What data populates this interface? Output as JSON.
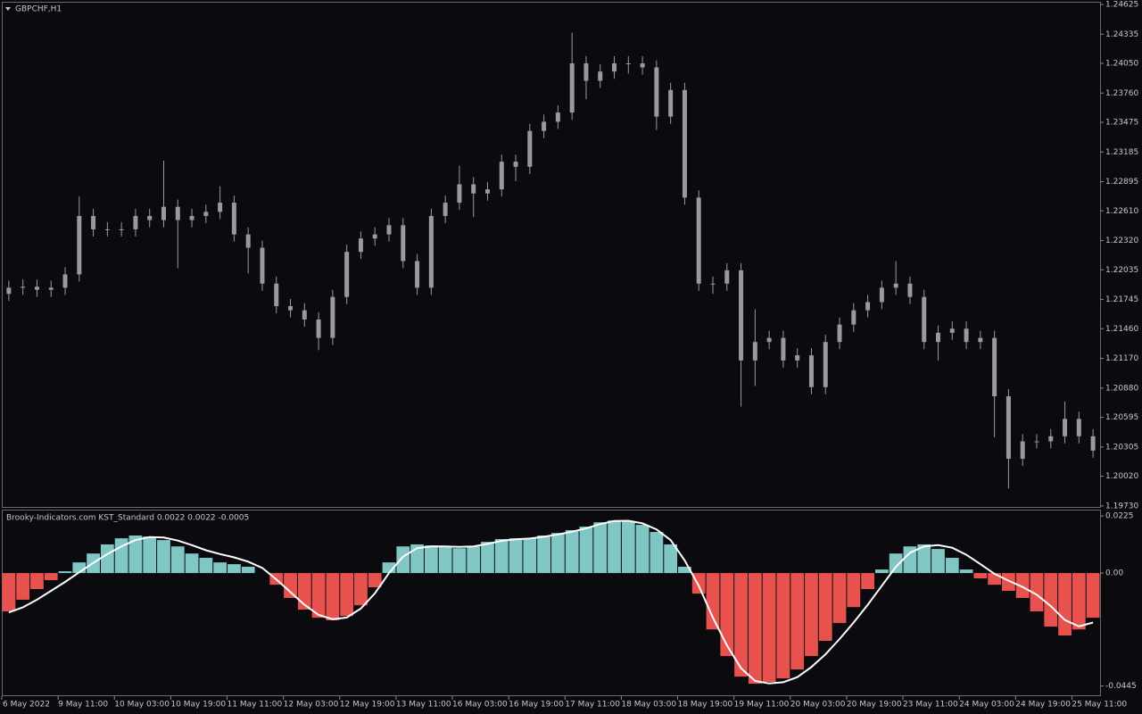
{
  "chart_data": [
    {
      "type": "candlestick",
      "title": "GBPCHF,H1",
      "categories": [
        "6 May 2022",
        null,
        null,
        null,
        "9 May 11:00",
        null,
        null,
        null,
        "10 May 03:00",
        null,
        null,
        null,
        "10 May 19:00",
        null,
        null,
        null,
        "11 May 11:00",
        null,
        null,
        null,
        "12 May 03:00",
        null,
        null,
        null,
        "12 May 19:00",
        null,
        null,
        null,
        "13 May 11:00",
        null,
        null,
        null,
        "16 May 03:00",
        null,
        null,
        null,
        "16 May 19:00",
        null,
        null,
        null,
        "17 May 11:00",
        null,
        null,
        null,
        "18 May 03:00",
        null,
        null,
        null,
        "18 May 19:00",
        null,
        null,
        null,
        "19 May 11:00",
        null,
        null,
        null,
        "20 May 03:00",
        null,
        null,
        null,
        "20 May 19:00",
        null,
        null,
        null,
        "23 May 11:00",
        null,
        null,
        null,
        "24 May 03:00",
        null,
        null,
        null,
        "24 May 19:00",
        null,
        null,
        null,
        "25 May 11:00",
        null
      ],
      "open": [
        1.218,
        1.2186,
        1.2187,
        1.2184,
        1.2186,
        1.2199,
        1.2256,
        1.2243,
        1.2243,
        1.2243,
        1.2256,
        1.2252,
        1.2265,
        1.2252,
        1.2256,
        1.226,
        1.2269,
        1.2238,
        1.2225,
        1.219,
        1.2168,
        1.2164,
        1.2155,
        1.2137,
        1.2177,
        1.2221,
        1.2234,
        1.2238,
        1.2247,
        1.2212,
        1.2186,
        1.2256,
        1.2269,
        1.2287,
        1.2278,
        1.2282,
        1.2309,
        1.2304,
        1.2339,
        1.2348,
        1.2357,
        1.2405,
        1.2388,
        1.2397,
        1.2405,
        1.2405,
        1.2401,
        1.2353,
        1.2379,
        1.2274,
        1.219,
        1.219,
        1.2203,
        1.2115,
        1.2133,
        1.2137,
        1.2115,
        1.212,
        1.2089,
        1.2133,
        1.215,
        1.2164,
        1.2172,
        1.2186,
        1.219,
        1.2177,
        1.2133,
        1.2142,
        1.2146,
        1.2133,
        1.2137,
        1.208,
        1.2019,
        1.2036,
        1.2036,
        1.2041,
        1.2058,
        1.2041
      ],
      "high": [
        1.2193,
        1.2194,
        1.2194,
        1.2193,
        1.2206,
        1.2275,
        1.2263,
        1.225,
        1.225,
        1.2263,
        1.2263,
        1.231,
        1.2272,
        1.2263,
        1.2267,
        1.2285,
        1.2276,
        1.2245,
        1.2232,
        1.2197,
        1.2175,
        1.2171,
        1.2162,
        1.2184,
        1.2228,
        1.2241,
        1.2245,
        1.2254,
        1.2254,
        1.2219,
        1.2263,
        1.2276,
        1.2305,
        1.2294,
        1.2289,
        1.2316,
        1.2316,
        1.2346,
        1.2355,
        1.2364,
        1.2435,
        1.2412,
        1.2404,
        1.2412,
        1.2412,
        1.2412,
        1.2408,
        1.2386,
        1.2386,
        1.2281,
        1.2197,
        1.221,
        1.221,
        1.2165,
        1.2144,
        1.2144,
        1.2127,
        1.2127,
        1.214,
        1.2157,
        1.2171,
        1.2179,
        1.2193,
        1.2212,
        1.2197,
        1.2184,
        1.2149,
        1.2153,
        1.2153,
        1.2144,
        1.2144,
        1.2087,
        1.2043,
        1.2043,
        1.2048,
        1.2075,
        1.2065,
        1.2048
      ],
      "low": [
        1.2173,
        1.2179,
        1.2177,
        1.2177,
        1.2179,
        1.2192,
        1.2236,
        1.2236,
        1.2236,
        1.2236,
        1.2245,
        1.2245,
        1.2205,
        1.2245,
        1.2249,
        1.2253,
        1.2231,
        1.22,
        1.2183,
        1.2161,
        1.2157,
        1.2148,
        1.2125,
        1.213,
        1.217,
        1.2214,
        1.2227,
        1.2231,
        1.2205,
        1.2179,
        1.2179,
        1.2249,
        1.2262,
        1.2255,
        1.2271,
        1.2275,
        1.229,
        1.2297,
        1.2332,
        1.2341,
        1.235,
        1.237,
        1.2381,
        1.239,
        1.2395,
        1.2394,
        1.234,
        1.2346,
        1.2267,
        1.2183,
        1.218,
        1.2183,
        1.207,
        1.209,
        1.2126,
        1.2108,
        1.2108,
        1.2082,
        1.2082,
        1.2126,
        1.2143,
        1.2157,
        1.2165,
        1.2179,
        1.217,
        1.2126,
        1.2115,
        1.2135,
        1.2126,
        1.2126,
        1.204,
        1.199,
        1.2012,
        1.2029,
        1.2029,
        1.2034,
        1.2034,
        1.202
      ],
      "close": [
        1.2186,
        1.2187,
        1.2184,
        1.2186,
        1.2199,
        1.2256,
        1.2243,
        1.2243,
        1.2243,
        1.2256,
        1.2252,
        1.2265,
        1.2252,
        1.2256,
        1.226,
        1.2269,
        1.2238,
        1.2225,
        1.219,
        1.2168,
        1.2164,
        1.2155,
        1.2137,
        1.2177,
        1.2221,
        1.2234,
        1.2238,
        1.2247,
        1.2212,
        1.2186,
        1.2256,
        1.2269,
        1.2287,
        1.2278,
        1.2282,
        1.2309,
        1.2304,
        1.2339,
        1.2348,
        1.2357,
        1.2405,
        1.2388,
        1.2397,
        1.2405,
        1.2405,
        1.2401,
        1.2353,
        1.2379,
        1.2274,
        1.219,
        1.219,
        1.2203,
        1.2115,
        1.2133,
        1.2137,
        1.2115,
        1.212,
        1.2089,
        1.2133,
        1.215,
        1.2164,
        1.2172,
        1.2186,
        1.219,
        1.2177,
        1.2133,
        1.2142,
        1.2146,
        1.2133,
        1.2137,
        1.208,
        1.2019,
        1.2036,
        1.2036,
        1.2041,
        1.2058,
        1.2041,
        1.2027
      ],
      "color": "#9a9a9a",
      "ylim": [
        1.1972,
        1.24651
      ],
      "yticks": [
        1.24625,
        1.24335,
        {
          "value": 1.2405,
          "label": "1.24050"
        },
        {
          "value": 1.2376,
          "label": "1.23760"
        },
        1.23475,
        1.23185,
        1.22895,
        {
          "value": 1.2261,
          "label": "1.22610"
        },
        {
          "value": 1.2232,
          "label": "1.22320"
        },
        1.22035,
        1.21745,
        {
          "value": 1.2146,
          "label": "1.21460"
        },
        {
          "value": 1.2117,
          "label": "1.21170"
        },
        {
          "value": 1.2088,
          "label": "1.20880"
        },
        1.20595,
        1.20305,
        {
          "value": 1.2002,
          "label": "1.20020"
        },
        {
          "value": 1.1973,
          "label": "1.19730"
        }
      ]
    },
    {
      "type": "histogram-line",
      "title": "Brooky-Indicators.com KST_Standard 0.0022 0.0022 -0.0005",
      "histogram": {
        "values": [
          -0.0151,
          -0.0105,
          -0.0063,
          -0.0028,
          0.0007,
          0.0042,
          0.0077,
          0.0113,
          0.0137,
          0.0148,
          0.0144,
          0.013,
          0.0105,
          0.0077,
          0.006,
          0.0042,
          0.0035,
          0.0025,
          0.0,
          -0.0046,
          -0.0098,
          -0.0144,
          -0.0176,
          -0.0186,
          -0.0169,
          -0.0127,
          -0.0056,
          0.0042,
          0.0105,
          0.0113,
          0.0109,
          0.0102,
          0.0098,
          0.0105,
          0.0123,
          0.0134,
          0.0137,
          0.0137,
          0.0148,
          0.0158,
          0.0169,
          0.0183,
          0.02,
          0.0207,
          0.0204,
          0.019,
          0.0162,
          0.0113,
          0.0025,
          -0.0081,
          -0.0222,
          -0.0327,
          -0.0408,
          -0.0436,
          -0.0429,
          -0.0415,
          -0.038,
          -0.0327,
          -0.0267,
          -0.0197,
          -0.0134,
          -0.0063,
          0.0014,
          0.0077,
          0.0105,
          0.0113,
          0.0095,
          0.006,
          0.0014,
          -0.0021,
          -0.0046,
          -0.007,
          -0.0098,
          -0.0151,
          -0.0211,
          -0.0246,
          -0.0222,
          -0.0176
        ],
        "up_color": "#7fc6c4",
        "down_color": "#e8524e"
      },
      "signal": {
        "values": [
          -0.0155,
          -0.0135,
          -0.0105,
          -0.007,
          -0.0035,
          0.0003,
          0.004,
          0.0075,
          0.0105,
          0.013,
          0.0142,
          0.014,
          0.0128,
          0.011,
          0.009,
          0.0075,
          0.0062,
          0.0045,
          0.002,
          -0.0025,
          -0.0075,
          -0.0125,
          -0.0165,
          -0.0182,
          -0.0175,
          -0.014,
          -0.008,
          0.0,
          0.0065,
          0.0098,
          0.0105,
          0.0105,
          0.0103,
          0.0105,
          0.0115,
          0.0127,
          0.0133,
          0.0136,
          0.0143,
          0.0152,
          0.0163,
          0.0176,
          0.0193,
          0.0205,
          0.0206,
          0.0196,
          0.0172,
          0.013,
          0.005,
          -0.005,
          -0.0175,
          -0.0285,
          -0.0375,
          -0.0425,
          -0.0435,
          -0.043,
          -0.041,
          -0.037,
          -0.032,
          -0.026,
          -0.0195,
          -0.0125,
          -0.005,
          0.0025,
          0.008,
          0.0105,
          0.011,
          0.01,
          0.0072,
          0.0035,
          -0.0003,
          -0.003,
          -0.0055,
          -0.0085,
          -0.013,
          -0.0185,
          -0.021,
          -0.0195
        ],
        "color": "#ffffff"
      },
      "ylim": [
        -0.0485,
        0.025
      ],
      "yticks": [
        0.0225,
        {
          "value": 0,
          "label": "0.00"
        },
        -0.0445
      ]
    }
  ]
}
